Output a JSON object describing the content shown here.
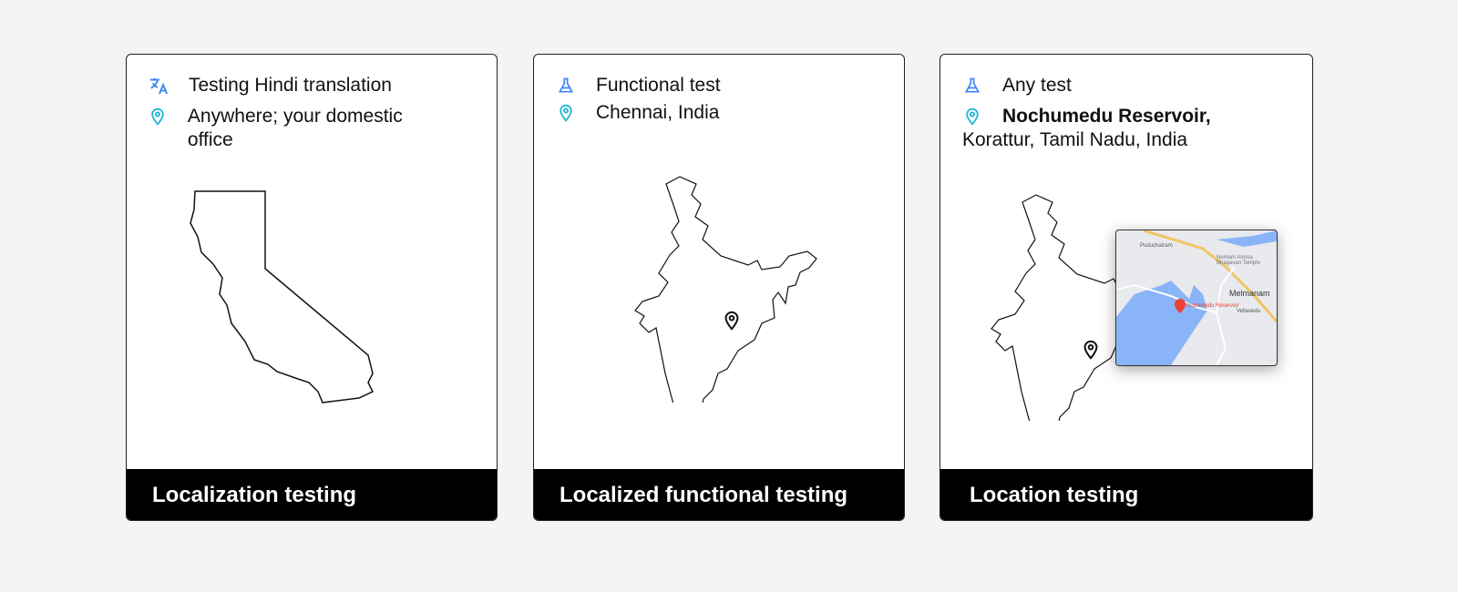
{
  "cards": [
    {
      "test": "Testing Hindi translation",
      "test_icon": "translate-icon",
      "location": "Anywhere; your domestic office",
      "location_icon": "location-pin-icon",
      "title": "Localization testing",
      "map": "california-outline"
    },
    {
      "test": "Functional test",
      "test_icon": "flask-icon",
      "location": "Chennai, India",
      "location_icon": "location-pin-icon",
      "title": "Localized functional testing",
      "map": "india-outline"
    },
    {
      "test": "Any test",
      "test_icon": "flask-icon",
      "location_bold": "Nochumedu Reservoir,",
      "location": "Korattur, Tamil Nadu, India",
      "location_icon": "location-pin-icon",
      "title": "Location testing",
      "map": "india-outline",
      "minimap": {
        "labels": [
          "Puduchatram",
          "Nemam Amma Bhagavan Temple",
          "Nochimedu Reservoir",
          "Melmanam",
          "Vellavedu"
        ]
      }
    }
  ],
  "colors": {
    "icon_blue": "#3b82f6",
    "pin_cyan": "#22b5d6",
    "footer": "#000000",
    "water": "#8ab4f8",
    "road": "#f3c463",
    "marker": "#ea4335"
  }
}
